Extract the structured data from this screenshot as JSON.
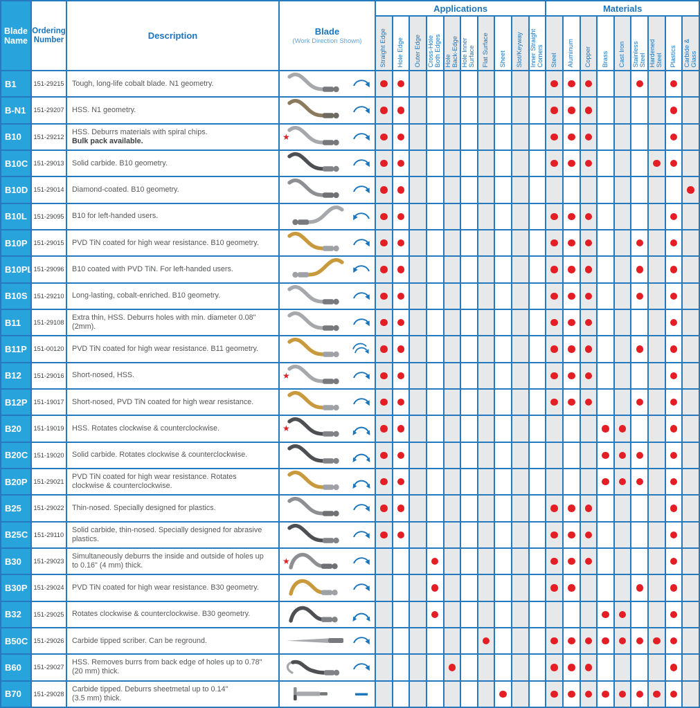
{
  "title_cells": {
    "blade_name": "Blade\nName",
    "ordering_number": "Ordering\nNumber",
    "description": "Description",
    "blade": "Blade",
    "blade_sub": "(Work Direction Shown)"
  },
  "groups": {
    "applications": "Applications",
    "materials": "Materials"
  },
  "app_columns": [
    "Straight Edge",
    "Hole Edge",
    "Outer Edge",
    "Cross-Hole\nBoth Edges",
    "Hole\nBack-Edge",
    "Hole Inner\nSurface",
    "Flat Surface",
    "Sheet",
    "Slot/Keyway",
    "Inner Straight\nCorners"
  ],
  "mat_columns": [
    "Steel",
    "Aluminum",
    "Copper",
    "Brass",
    "Cast Iron",
    "Stainless\nSteel",
    "Hardened\nSteel",
    "Plastics",
    "Carbide &\nGlass"
  ],
  "colors": {
    "grid_blue": "#2579be",
    "accent_blue": "#1b75bc",
    "name_cell_blue": "#29a3db",
    "dot_red": "#e31e24",
    "shade_gray": "#e7e8e9"
  },
  "star_glyph": "★",
  "rows": [
    {
      "name": "B1",
      "order": "151-29215",
      "desc": "Tough, long-life cobalt blade. N1 geometry.",
      "desc_bold": "",
      "star": false,
      "shape": "s",
      "color": "silver",
      "mirror": false,
      "arrow": "cw",
      "apps": [
        0,
        1
      ],
      "mats": [
        0,
        1,
        2,
        5,
        7
      ]
    },
    {
      "name": "B-N1",
      "order": "151-29207",
      "desc": "HSS. N1 geometry.",
      "desc_bold": "",
      "star": false,
      "shape": "s",
      "color": "bronze",
      "mirror": false,
      "arrow": "cw",
      "apps": [
        0,
        1
      ],
      "mats": [
        0,
        1,
        2,
        7
      ]
    },
    {
      "name": "B10",
      "order": "151-29212",
      "desc": "HSS. Deburrs materials with spiral chips.",
      "desc_bold": "Bulk pack available.",
      "star": true,
      "shape": "s",
      "color": "silver",
      "mirror": false,
      "arrow": "cw",
      "apps": [
        0,
        1
      ],
      "mats": [
        0,
        1,
        2,
        7
      ]
    },
    {
      "name": "B10C",
      "order": "151-29013",
      "desc": "Solid carbide. B10 geometry.",
      "desc_bold": "",
      "star": false,
      "shape": "s",
      "color": "dark",
      "mirror": false,
      "arrow": "cw",
      "apps": [
        0,
        1
      ],
      "mats": [
        0,
        1,
        2,
        6,
        7
      ]
    },
    {
      "name": "B10D",
      "order": "151-29014",
      "desc": "Diamond-coated. B10 geometry.",
      "desc_bold": "",
      "star": false,
      "shape": "s",
      "color": "gray",
      "mirror": false,
      "arrow": "cw",
      "apps": [
        0,
        1
      ],
      "mats": [
        8
      ]
    },
    {
      "name": "B10L",
      "order": "151-29095",
      "desc": "B10 for left-handed users.",
      "desc_bold": "",
      "star": false,
      "shape": "s",
      "color": "silver",
      "mirror": true,
      "arrow": "ccw",
      "apps": [
        0,
        1
      ],
      "mats": [
        0,
        1,
        2,
        7
      ]
    },
    {
      "name": "B10P",
      "order": "151-29015",
      "desc": "PVD TiN coated for high wear resistance. B10 geometry.",
      "desc_bold": "",
      "star": false,
      "shape": "s",
      "color": "gold",
      "mirror": false,
      "arrow": "cw",
      "apps": [
        0,
        1
      ],
      "mats": [
        0,
        1,
        2,
        5,
        7
      ]
    },
    {
      "name": "B10PL",
      "order": "151-29096",
      "desc": "B10 coated with PVD TiN. For left-handed users.",
      "desc_bold": "",
      "star": false,
      "shape": "s",
      "color": "gold",
      "mirror": true,
      "arrow": "ccw",
      "apps": [
        0,
        1
      ],
      "mats": [
        0,
        1,
        2,
        5,
        7
      ]
    },
    {
      "name": "B10S",
      "order": "151-29210",
      "desc": "Long-lasting, cobalt-enriched. B10 geometry.",
      "desc_bold": "",
      "star": false,
      "shape": "s",
      "color": "silver",
      "mirror": false,
      "arrow": "cw",
      "apps": [
        0,
        1
      ],
      "mats": [
        0,
        1,
        2,
        5,
        7
      ]
    },
    {
      "name": "B11",
      "order": "151-29108",
      "desc": "Extra thin, HSS. Deburrs holes with min. diameter 0.08\"\n(2mm).",
      "desc_bold": "",
      "star": false,
      "shape": "s",
      "color": "silver",
      "mirror": false,
      "arrow": "cw",
      "apps": [
        0,
        1
      ],
      "mats": [
        0,
        1,
        2,
        7
      ]
    },
    {
      "name": "B11P",
      "order": "151-00120",
      "desc": "PVD TiN coated for high wear resistance. B11 geometry.",
      "desc_bold": "",
      "star": false,
      "shape": "s",
      "color": "gold",
      "mirror": false,
      "arrow": "cw2",
      "apps": [
        0,
        1
      ],
      "mats": [
        0,
        1,
        2,
        5,
        7
      ]
    },
    {
      "name": "B12",
      "order": "151-29016",
      "desc": "Short-nosed, HSS.",
      "desc_bold": "",
      "star": true,
      "shape": "s",
      "color": "silver",
      "mirror": false,
      "arrow": "cw",
      "apps": [
        0,
        1
      ],
      "mats": [
        0,
        1,
        2,
        7
      ]
    },
    {
      "name": "B12P",
      "order": "151-19017",
      "desc": "Short-nosed, PVD TiN coated for high wear resistance.",
      "desc_bold": "",
      "star": false,
      "shape": "s",
      "color": "gold",
      "mirror": false,
      "arrow": "cw",
      "apps": [
        0,
        1
      ],
      "mats": [
        0,
        1,
        2,
        5,
        7
      ]
    },
    {
      "name": "B20",
      "order": "151-19019",
      "desc": "HSS. Rotates clockwise & counterclockwise.",
      "desc_bold": "",
      "star": true,
      "shape": "s",
      "color": "dark",
      "mirror": false,
      "arrow": "both",
      "apps": [
        0,
        1
      ],
      "mats": [
        3,
        4,
        7
      ]
    },
    {
      "name": "B20C",
      "order": "151-19020",
      "desc": "Solid carbide. Rotates clockwise & counterclockwise.",
      "desc_bold": "",
      "star": false,
      "shape": "s",
      "color": "dark",
      "mirror": false,
      "arrow": "both",
      "apps": [
        0,
        1
      ],
      "mats": [
        3,
        4,
        5,
        7
      ]
    },
    {
      "name": "B20P",
      "order": "151-29021",
      "desc": "PVD TiN coated for high wear resistance. Rotates\nclockwise & counterclockwise.",
      "desc_bold": "",
      "star": false,
      "shape": "s",
      "color": "gold",
      "mirror": false,
      "arrow": "both",
      "apps": [
        0,
        1
      ],
      "mats": [
        3,
        4,
        5,
        7
      ]
    },
    {
      "name": "B25",
      "order": "151-29022",
      "desc": "Thin-nosed. Specially designed for plastics.",
      "desc_bold": "",
      "star": false,
      "shape": "s",
      "color": "gray",
      "mirror": false,
      "arrow": "cw",
      "apps": [
        0,
        1
      ],
      "mats": [
        0,
        1,
        2,
        7
      ]
    },
    {
      "name": "B25C",
      "order": "151-29110",
      "desc": "Solid carbide, thin-nosed. Specially designed for abrasive\nplastics.",
      "desc_bold": "",
      "star": false,
      "shape": "s",
      "color": "dark",
      "mirror": false,
      "arrow": "cw",
      "apps": [
        0,
        1
      ],
      "mats": [
        0,
        1,
        2,
        7
      ]
    },
    {
      "name": "B30",
      "order": "151-29023",
      "desc": "Simultaneously deburrs the inside and outside of holes up\nto 0.16\" (4 mm) thick.",
      "desc_bold": "",
      "star": true,
      "shape": "hump",
      "color": "gray",
      "mirror": false,
      "arrow": "cw",
      "apps": [
        3
      ],
      "mats": [
        0,
        1,
        2,
        7
      ]
    },
    {
      "name": "B30P",
      "order": "151-29024",
      "desc": "PVD TiN coated for high wear resistance. B30 geometry.",
      "desc_bold": "",
      "star": false,
      "shape": "hump",
      "color": "gold",
      "mirror": false,
      "arrow": "cw",
      "apps": [
        3
      ],
      "mats": [
        0,
        1,
        5,
        7
      ]
    },
    {
      "name": "B32",
      "order": "151-29025",
      "desc": "Rotates clockwise & counterclockwise. B30 geometry.",
      "desc_bold": "",
      "star": false,
      "shape": "hump",
      "color": "dark",
      "mirror": false,
      "arrow": "both",
      "apps": [
        3
      ],
      "mats": [
        3,
        4,
        7
      ]
    },
    {
      "name": "B50C",
      "order": "151-29026",
      "desc": "Carbide tipped scriber. Can be reground.",
      "desc_bold": "",
      "star": false,
      "shape": "scriber",
      "color": "silver",
      "mirror": false,
      "arrow": "cw",
      "apps": [
        6
      ],
      "mats": [
        0,
        1,
        2,
        3,
        4,
        5,
        6,
        7
      ]
    },
    {
      "name": "B60",
      "order": "151-29027",
      "desc": "HSS. Removes burrs from back edge of holes up to 0.78\"\n(20 mm) thick.",
      "desc_bold": "",
      "star": false,
      "shape": "hook",
      "color": "dark",
      "mirror": false,
      "arrow": "cw",
      "apps": [
        4
      ],
      "mats": [
        0,
        1,
        2,
        7
      ]
    },
    {
      "name": "B70",
      "order": "151-29028",
      "desc": "Carbide tipped. Deburrs sheetmetal up to 0.14\"\n(3.5 mm) thick.",
      "desc_bold": "",
      "star": false,
      "shape": "lshape",
      "color": "silver",
      "mirror": false,
      "arrow": "dash",
      "apps": [
        7
      ],
      "mats": [
        0,
        1,
        2,
        3,
        4,
        5,
        6,
        7
      ]
    }
  ]
}
